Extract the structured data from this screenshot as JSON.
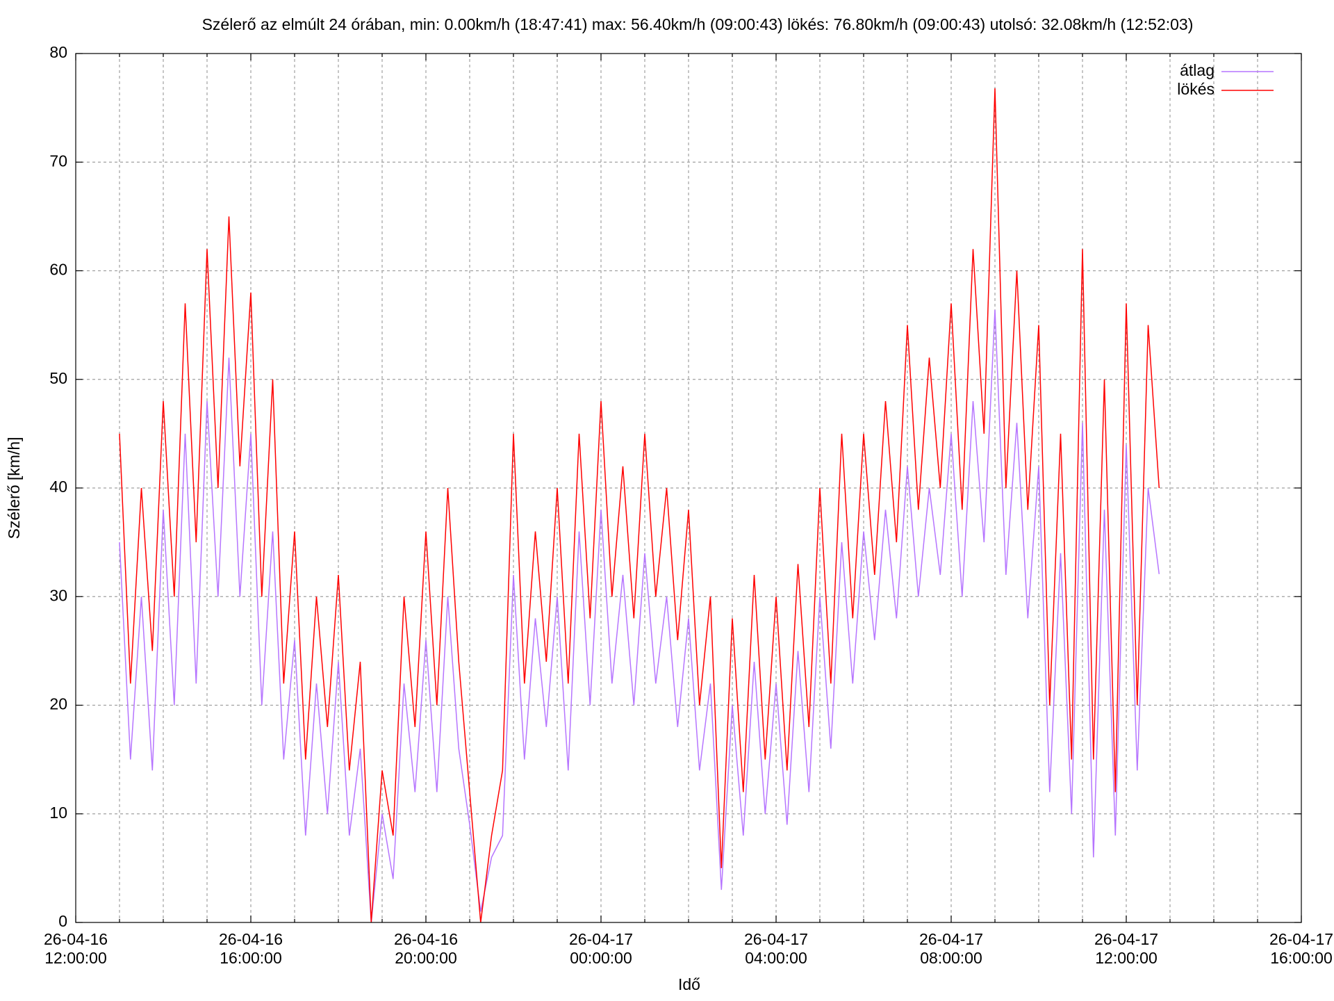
{
  "chart_data": {
    "type": "line",
    "title": "Szélerő az elmúlt 24 órában, min: 0.00km/h (18:47:41) max: 56.40km/h (09:00:43)  lökés: 76.80km/h (09:00:43) utolsó: 32.08km/h (12:52:03)",
    "xlabel": "Idő",
    "ylabel": "Szélerő [km/h]",
    "xlim": [
      "26-04-16 12:00:00",
      "26-04-17 16:00:00"
    ],
    "xticks": [
      "26-04-16 12:00:00",
      "26-04-16 16:00:00",
      "26-04-16 20:00:00",
      "26-04-17 00:00:00",
      "26-04-17 04:00:00",
      "26-04-17 08:00:00",
      "26-04-17 12:00:00",
      "26-04-17 16:00:00"
    ],
    "xminor": 4,
    "ylim": [
      0,
      80
    ],
    "yticks": [
      0,
      10,
      20,
      30,
      40,
      50,
      60,
      70,
      80
    ],
    "grid": true,
    "legend": "top-right",
    "x": [
      "26-04-16 13:00:00",
      "26-04-16 13:15:00",
      "26-04-16 13:30:00",
      "26-04-16 13:45:00",
      "26-04-16 14:00:00",
      "26-04-16 14:15:00",
      "26-04-16 14:30:00",
      "26-04-16 14:45:00",
      "26-04-16 15:00:00",
      "26-04-16 15:15:00",
      "26-04-16 15:30:00",
      "26-04-16 15:45:00",
      "26-04-16 16:00:00",
      "26-04-16 16:15:00",
      "26-04-16 16:30:00",
      "26-04-16 16:45:00",
      "26-04-16 17:00:00",
      "26-04-16 17:15:00",
      "26-04-16 17:30:00",
      "26-04-16 17:45:00",
      "26-04-16 18:00:00",
      "26-04-16 18:15:00",
      "26-04-16 18:30:00",
      "26-04-16 18:45:00",
      "26-04-16 19:00:00",
      "26-04-16 19:15:00",
      "26-04-16 19:30:00",
      "26-04-16 19:45:00",
      "26-04-16 20:00:00",
      "26-04-16 20:15:00",
      "26-04-16 20:30:00",
      "26-04-16 20:45:00",
      "26-04-16 21:00:00",
      "26-04-16 21:15:00",
      "26-04-16 21:30:00",
      "26-04-16 21:45:00",
      "26-04-16 22:00:00",
      "26-04-16 22:15:00",
      "26-04-16 22:30:00",
      "26-04-16 22:45:00",
      "26-04-16 23:00:00",
      "26-04-16 23:15:00",
      "26-04-16 23:30:00",
      "26-04-16 23:45:00",
      "26-04-17 00:00:00",
      "26-04-17 00:15:00",
      "26-04-17 00:30:00",
      "26-04-17 00:45:00",
      "26-04-17 01:00:00",
      "26-04-17 01:15:00",
      "26-04-17 01:30:00",
      "26-04-17 01:45:00",
      "26-04-17 02:00:00",
      "26-04-17 02:15:00",
      "26-04-17 02:30:00",
      "26-04-17 02:45:00",
      "26-04-17 03:00:00",
      "26-04-17 03:15:00",
      "26-04-17 03:30:00",
      "26-04-17 03:45:00",
      "26-04-17 04:00:00",
      "26-04-17 04:15:00",
      "26-04-17 04:30:00",
      "26-04-17 04:45:00",
      "26-04-17 05:00:00",
      "26-04-17 05:15:00",
      "26-04-17 05:30:00",
      "26-04-17 05:45:00",
      "26-04-17 06:00:00",
      "26-04-17 06:15:00",
      "26-04-17 06:30:00",
      "26-04-17 06:45:00",
      "26-04-17 07:00:00",
      "26-04-17 07:15:00",
      "26-04-17 07:30:00",
      "26-04-17 07:45:00",
      "26-04-17 08:00:00",
      "26-04-17 08:15:00",
      "26-04-17 08:30:00",
      "26-04-17 08:45:00",
      "26-04-17 09:00:00",
      "26-04-17 09:15:00",
      "26-04-17 09:30:00",
      "26-04-17 09:45:00",
      "26-04-17 10:00:00",
      "26-04-17 10:15:00",
      "26-04-17 10:30:00",
      "26-04-17 10:45:00",
      "26-04-17 11:00:00",
      "26-04-17 11:15:00",
      "26-04-17 11:30:00",
      "26-04-17 11:45:00",
      "26-04-17 12:00:00",
      "26-04-17 12:15:00",
      "26-04-17 12:30:00",
      "26-04-17 12:45:00"
    ],
    "series": [
      {
        "name": "átlag",
        "color": "#b675ff",
        "values": [
          35,
          15,
          30,
          14,
          38,
          20,
          45,
          22,
          48,
          30,
          52,
          30,
          45,
          20,
          36,
          15,
          26,
          8,
          22,
          10,
          24,
          8,
          16,
          0,
          10,
          4,
          22,
          12,
          26,
          12,
          30,
          16,
          9,
          1,
          6,
          8,
          32,
          15,
          28,
          18,
          30,
          14,
          36,
          20,
          38,
          22,
          32,
          20,
          34,
          22,
          30,
          18,
          28,
          14,
          22,
          3,
          20,
          8,
          24,
          10,
          22,
          9,
          25,
          12,
          30,
          16,
          35,
          22,
          36,
          26,
          38,
          28,
          42,
          30,
          40,
          32,
          45,
          30,
          48,
          35,
          56.4,
          32,
          46,
          28,
          42,
          12,
          34,
          10,
          46,
          6,
          38,
          8,
          44,
          14,
          40,
          32.08
        ]
      },
      {
        "name": "lökés",
        "color": "#ff0000",
        "values": [
          45,
          22,
          40,
          25,
          48,
          30,
          57,
          35,
          62,
          40,
          65,
          42,
          58,
          30,
          50,
          22,
          36,
          15,
          30,
          18,
          32,
          14,
          24,
          0,
          14,
          8,
          30,
          18,
          36,
          20,
          40,
          24,
          12,
          0,
          8,
          14,
          45,
          22,
          36,
          24,
          40,
          22,
          45,
          28,
          48,
          30,
          42,
          28,
          45,
          30,
          40,
          26,
          38,
          20,
          30,
          5,
          28,
          12,
          32,
          15,
          30,
          14,
          33,
          18,
          40,
          22,
          45,
          28,
          45,
          32,
          48,
          35,
          55,
          38,
          52,
          40,
          57,
          38,
          62,
          45,
          76.8,
          40,
          60,
          38,
          55,
          20,
          45,
          15,
          62,
          15,
          50,
          12,
          57,
          20,
          55,
          40
        ]
      }
    ]
  }
}
